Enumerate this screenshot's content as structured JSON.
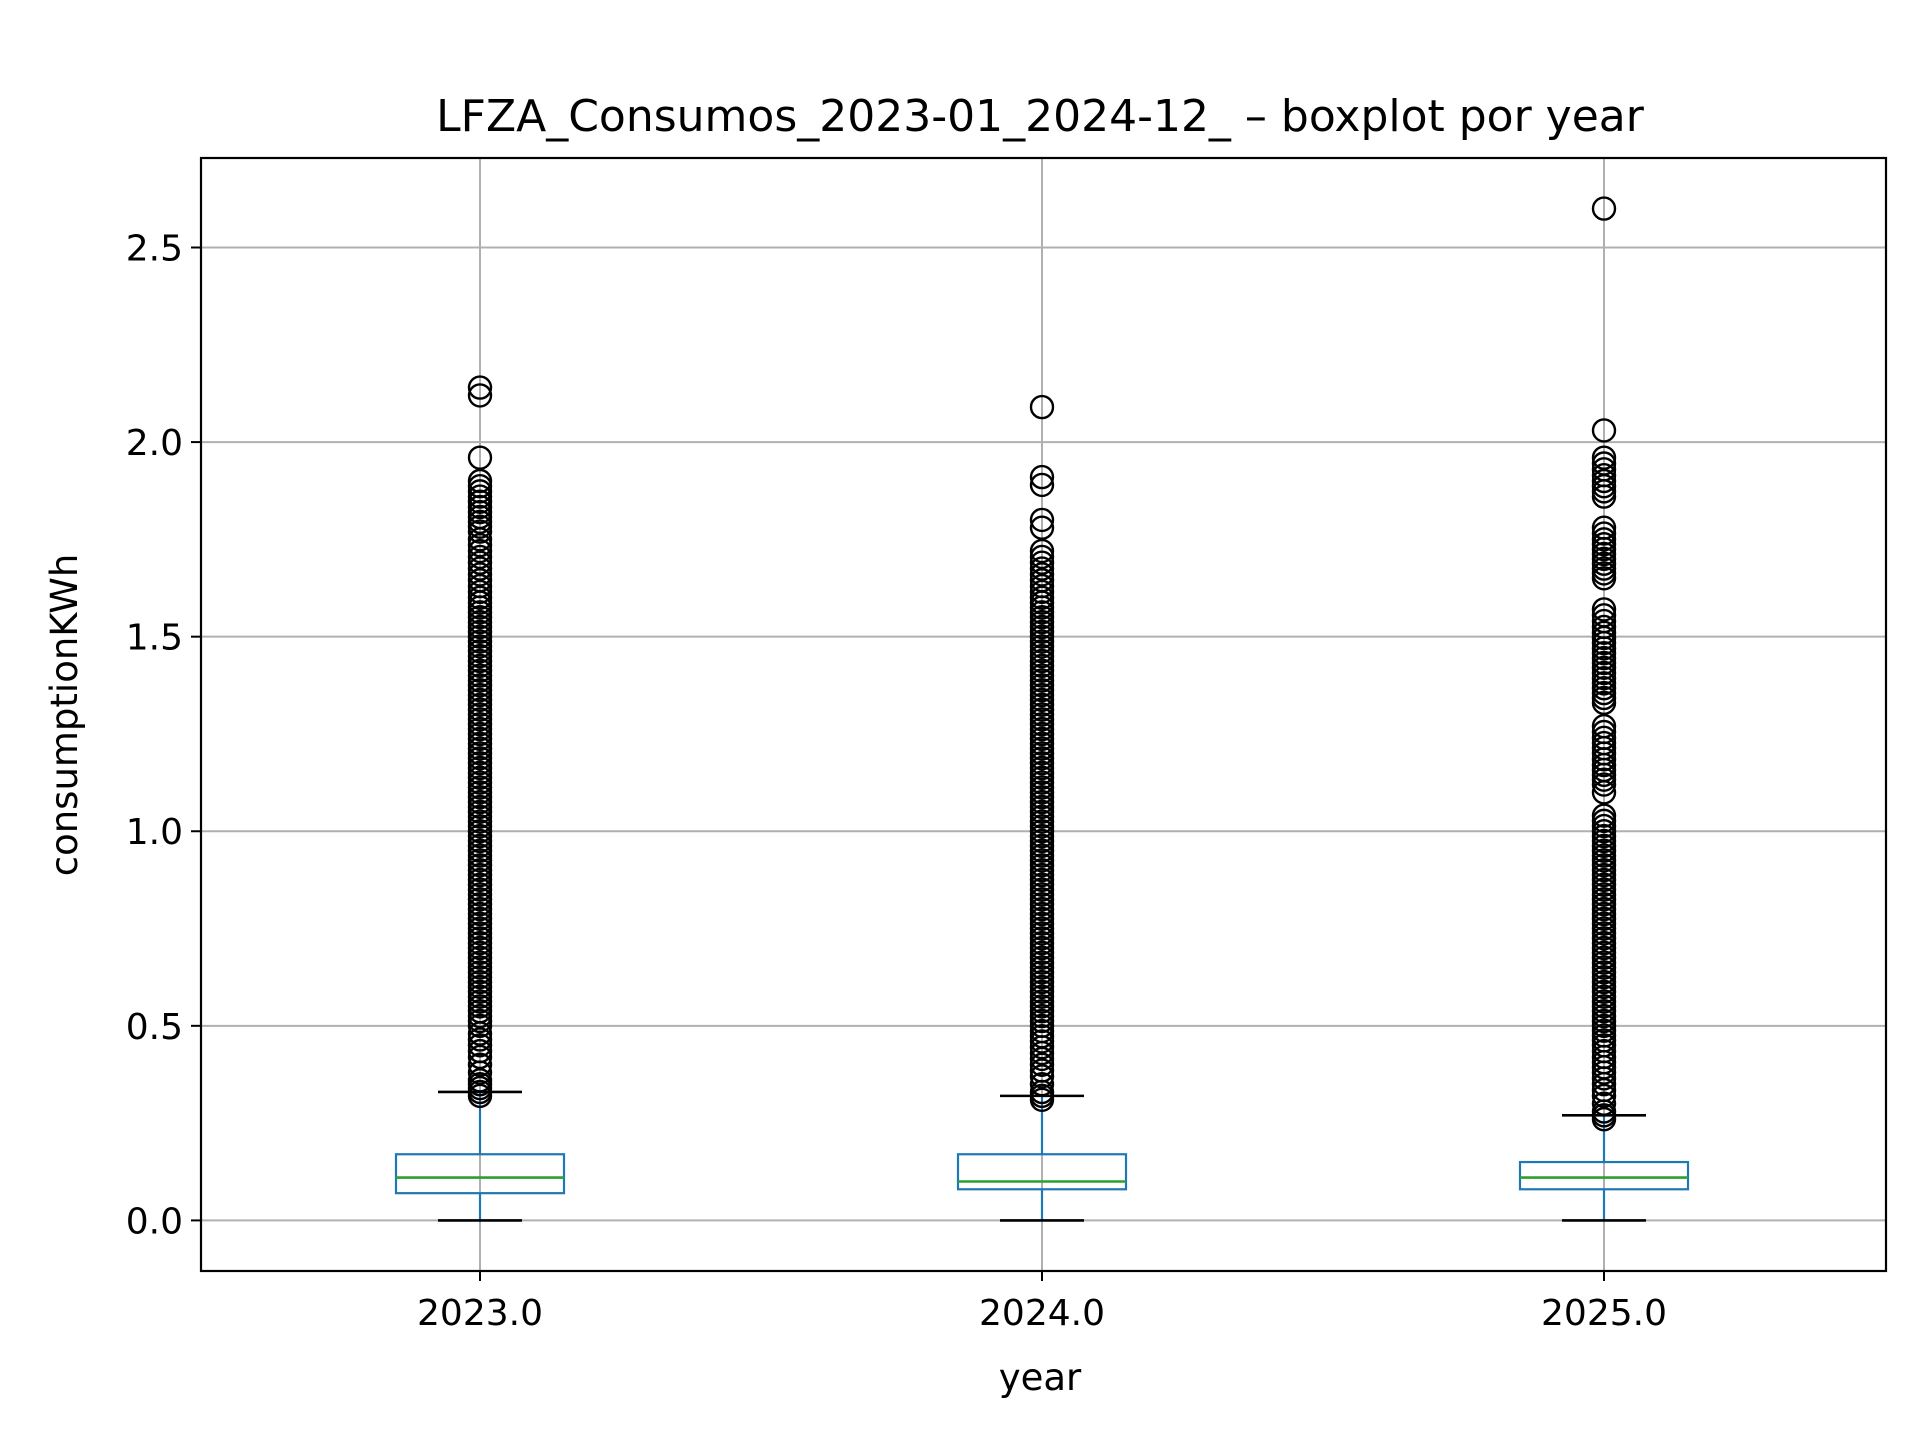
{
  "chart_data": {
    "type": "boxplot",
    "title": "LFZA_Consumos_2023-01_2024-12_ – boxplot por year",
    "xlabel": "year",
    "ylabel": "consumptionKWh",
    "categories": [
      "2023.0",
      "2024.0",
      "2025.0"
    ],
    "ylim": [
      -0.13,
      2.73
    ],
    "yticks": [
      0.0,
      0.5,
      1.0,
      1.5,
      2.0,
      2.5
    ],
    "ytick_labels": [
      "0.0",
      "0.5",
      "1.0",
      "1.5",
      "2.0",
      "2.5"
    ],
    "grid": true,
    "boxes": [
      {
        "category": "2023.0",
        "whisker_low": 0.0,
        "q1": 0.07,
        "median": 0.11,
        "q3": 0.17,
        "whisker_high": 0.33,
        "outliers": [
          0.32,
          0.33,
          0.34,
          0.35,
          0.36,
          0.38,
          0.4,
          0.42,
          0.45,
          0.48,
          0.5,
          0.55,
          0.6,
          0.65,
          0.7,
          0.75,
          0.8,
          0.85,
          0.9,
          0.95,
          1.0,
          1.05,
          1.1,
          1.15,
          1.2,
          1.25,
          1.3,
          1.35,
          1.4,
          1.45,
          1.5,
          1.55,
          1.6,
          1.63,
          1.66,
          1.69,
          1.72,
          1.75,
          1.77,
          1.82,
          1.86,
          1.9,
          1.96,
          2.12,
          2.14
        ]
      },
      {
        "category": "2024.0",
        "whisker_low": 0.0,
        "q1": 0.08,
        "median": 0.1,
        "q3": 0.17,
        "whisker_high": 0.32,
        "outliers": [
          0.31,
          0.32,
          0.33,
          0.35,
          0.37,
          0.4,
          0.43,
          0.46,
          0.5,
          0.55,
          0.6,
          0.65,
          0.7,
          0.75,
          0.8,
          0.85,
          0.9,
          0.95,
          1.0,
          1.05,
          1.1,
          1.15,
          1.2,
          1.25,
          1.3,
          1.35,
          1.4,
          1.45,
          1.5,
          1.55,
          1.6,
          1.63,
          1.66,
          1.69,
          1.72,
          1.78,
          1.8,
          1.89,
          1.91,
          2.09
        ]
      },
      {
        "category": "2025.0",
        "whisker_low": 0.0,
        "q1": 0.08,
        "median": 0.11,
        "q3": 0.15,
        "whisker_high": 0.27,
        "outliers": [
          0.26,
          0.27,
          0.28,
          0.3,
          0.32,
          0.35,
          0.38,
          0.42,
          0.45,
          0.5,
          0.55,
          0.6,
          0.65,
          0.7,
          0.75,
          0.8,
          0.85,
          0.9,
          0.95,
          1.0,
          1.04,
          1.1,
          1.12,
          1.17,
          1.2,
          1.24,
          1.27,
          1.33,
          1.38,
          1.42,
          1.47,
          1.51,
          1.54,
          1.57,
          1.65,
          1.7,
          1.75,
          1.78,
          1.86,
          1.9,
          1.93,
          1.96,
          2.03,
          2.6
        ]
      }
    ],
    "colors": {
      "box": "#1f77b4",
      "median": "#2ca02c",
      "cap": "#000000",
      "outlier": "#000000",
      "grid": "#b0b0b0"
    }
  }
}
